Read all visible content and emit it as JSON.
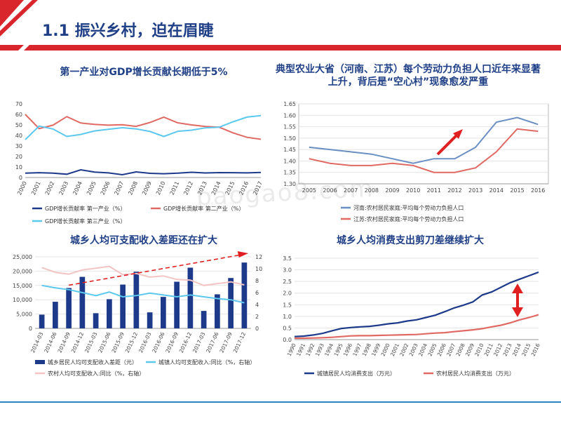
{
  "page": {
    "title": "1.1 振兴乡村，迫在眉睫",
    "watermark": "baogao8.com"
  },
  "colors": {
    "red": "#d9262c",
    "navy": "#1f3f86",
    "dark_blue": "#1d3a8a",
    "salmon": "#e06a63",
    "cyan": "#5bc8ee",
    "pink": "#f2c4c4",
    "steel_blue": "#6a8fc3"
  },
  "chart_data": [
    {
      "type": "line",
      "title": "第一产业对GDP增长贡献长期低于5%",
      "x": [
        "2000",
        "2001",
        "2002",
        "2003",
        "2004",
        "2005",
        "2006",
        "2007",
        "2008",
        "2009",
        "2010",
        "2011",
        "2012",
        "2013",
        "2014",
        "2015",
        "2016",
        "2017"
      ],
      "ylim": [
        0,
        70
      ],
      "yticks": [
        0,
        10,
        20,
        30,
        40,
        50,
        60,
        70
      ],
      "legend": "bottom",
      "series": [
        {
          "name": "GDP增长贡献率 第一产业（%）",
          "color": "#1d3a8a",
          "values": [
            4.1,
            4.6,
            4.2,
            3.1,
            7.3,
            5.2,
            4.4,
            2.7,
            5.3,
            4.0,
            3.6,
            4.1,
            5.0,
            4.3,
            4.7,
            4.6,
            4.4,
            4.9
          ]
        },
        {
          "name": "GDP增长贡献率 第二产业（%）",
          "color": "#e06a63",
          "values": [
            60,
            46.5,
            49.7,
            57.9,
            51.8,
            50.5,
            49.7,
            50.1,
            48.6,
            52.3,
            57.4,
            52.0,
            50.0,
            48.5,
            47.8,
            42.4,
            38.2,
            36.3
          ]
        },
        {
          "name": "GDP增长贡献率 第三产业（%）",
          "color": "#5bc8ee",
          "values": [
            36,
            48.9,
            46.1,
            39,
            40.9,
            44.3,
            45.9,
            47.3,
            46.2,
            43.7,
            39,
            43.9,
            45,
            47.2,
            47.8,
            53,
            57.4,
            58.8
          ]
        }
      ]
    },
    {
      "type": "line",
      "title": "典型农业大省（河南、江苏）每个劳动力负担人口近年来显著上升，背后是“空心村”现象愈发严重",
      "x": [
        "2005",
        "2006",
        "2007",
        "2008",
        "2009",
        "2010",
        "2011",
        "2012",
        "2013",
        "2014",
        "2015",
        "2016"
      ],
      "ylim": [
        1.3,
        1.65
      ],
      "yticks": [
        "1.30",
        "1.35",
        "1.40",
        "1.45",
        "1.50",
        "1.55",
        "1.60",
        "1.65"
      ],
      "legend": "bottom",
      "series": [
        {
          "name": "河南:农村居民家庭:平均每个劳动力负担人口",
          "color": "#6a8fc3",
          "values": [
            1.46,
            1.45,
            1.44,
            1.43,
            1.41,
            1.39,
            1.41,
            1.41,
            1.46,
            1.57,
            1.59,
            1.56
          ]
        },
        {
          "name": "江苏:农村居民家庭:平均每个劳动力负担人口",
          "color": "#e06a63",
          "values": [
            1.41,
            1.39,
            1.38,
            1.38,
            1.39,
            1.38,
            1.35,
            1.35,
            1.37,
            1.44,
            1.54,
            1.53
          ]
        }
      ]
    },
    {
      "type": "bar",
      "title": "城乡人均可支配收入差距还在扩大",
      "categories": [
        "2014-03",
        "2014-06",
        "2014-09",
        "2014-12",
        "2015-03",
        "2015-06",
        "2015-09",
        "2015-12",
        "2016-03",
        "2016-06",
        "2016-09",
        "2016-12",
        "2017-03",
        "2017-06",
        "2017-09",
        "2017-12"
      ],
      "ylim_left": [
        0,
        25000
      ],
      "yticks_left": [
        "0",
        "5,000",
        "10,000",
        "15,000",
        "20,000",
        "25,000"
      ],
      "ylim_right": [
        0,
        12
      ],
      "yticks_right": [
        "0",
        "2",
        "4",
        "6",
        "8",
        "10",
        "12"
      ],
      "legend": "bottom",
      "series": [
        {
          "name": "城乡居民人均可支配收入差距（元）",
          "type": "bar",
          "axis": "left",
          "color": "#1d3a8a",
          "values": [
            4800,
            9300,
            14100,
            18000,
            5300,
            10200,
            15300,
            19800,
            5600,
            11000,
            16300,
            21200,
            6100,
            11900,
            17600,
            23000
          ]
        },
        {
          "name": "城镇人均可支配收入:同比（%，右轴）",
          "type": "line",
          "axis": "right",
          "color": "#5bc8ee",
          "values": [
            7.2,
            6.8,
            6.5,
            6.0,
            5.5,
            6.1,
            5.3,
            5.5,
            5.9,
            5.6,
            5.3,
            5.6,
            5.3,
            5.0,
            4.8,
            4.3
          ]
        },
        {
          "name": "农村人均可支配收入:同比（%，右轴）",
          "type": "line",
          "axis": "right",
          "color": "#f2c4c4",
          "values": [
            10.2,
            9.4,
            9.1,
            9.8,
            10.1,
            10.4,
            9.0,
            9.2,
            8.6,
            8.8,
            8.2,
            8.1,
            7.2,
            7.5,
            7.8,
            7.3
          ]
        }
      ]
    },
    {
      "type": "line",
      "title": "城乡人均消费支出剪刀差继续扩大",
      "x": [
        "1990",
        "1991",
        "1992",
        "1993",
        "1994",
        "1995",
        "1996",
        "1997",
        "1998",
        "1999",
        "2000",
        "2001",
        "2002",
        "2003",
        "2004",
        "2005",
        "2006",
        "2007",
        "2008",
        "2009",
        "2010",
        "2011",
        "2012",
        "2013",
        "2014",
        "2015",
        "2016"
      ],
      "ylim": [
        0.0,
        3.5
      ],
      "yticks": [
        "0.0",
        "0.5",
        "1.0",
        "1.5",
        "2.0",
        "2.5",
        "3.0",
        "3.5"
      ],
      "legend": "bottom",
      "series": [
        {
          "name": "城镇居民人均消费支出（万元）",
          "color": "#1d3a8a",
          "values": [
            0.13,
            0.15,
            0.2,
            0.27,
            0.38,
            0.48,
            0.52,
            0.55,
            0.57,
            0.62,
            0.68,
            0.72,
            0.8,
            0.85,
            0.95,
            1.05,
            1.2,
            1.36,
            1.48,
            1.62,
            1.92,
            2.05,
            2.25,
            2.45,
            2.6,
            2.75,
            2.9
          ]
        },
        {
          "name": "农村居民人均消费支出（万元）",
          "color": "#e06a63",
          "values": [
            0.06,
            0.06,
            0.07,
            0.08,
            0.1,
            0.13,
            0.16,
            0.17,
            0.17,
            0.18,
            0.19,
            0.2,
            0.21,
            0.22,
            0.25,
            0.28,
            0.3,
            0.34,
            0.38,
            0.42,
            0.47,
            0.55,
            0.62,
            0.72,
            0.85,
            0.95,
            1.07
          ]
        }
      ]
    }
  ]
}
